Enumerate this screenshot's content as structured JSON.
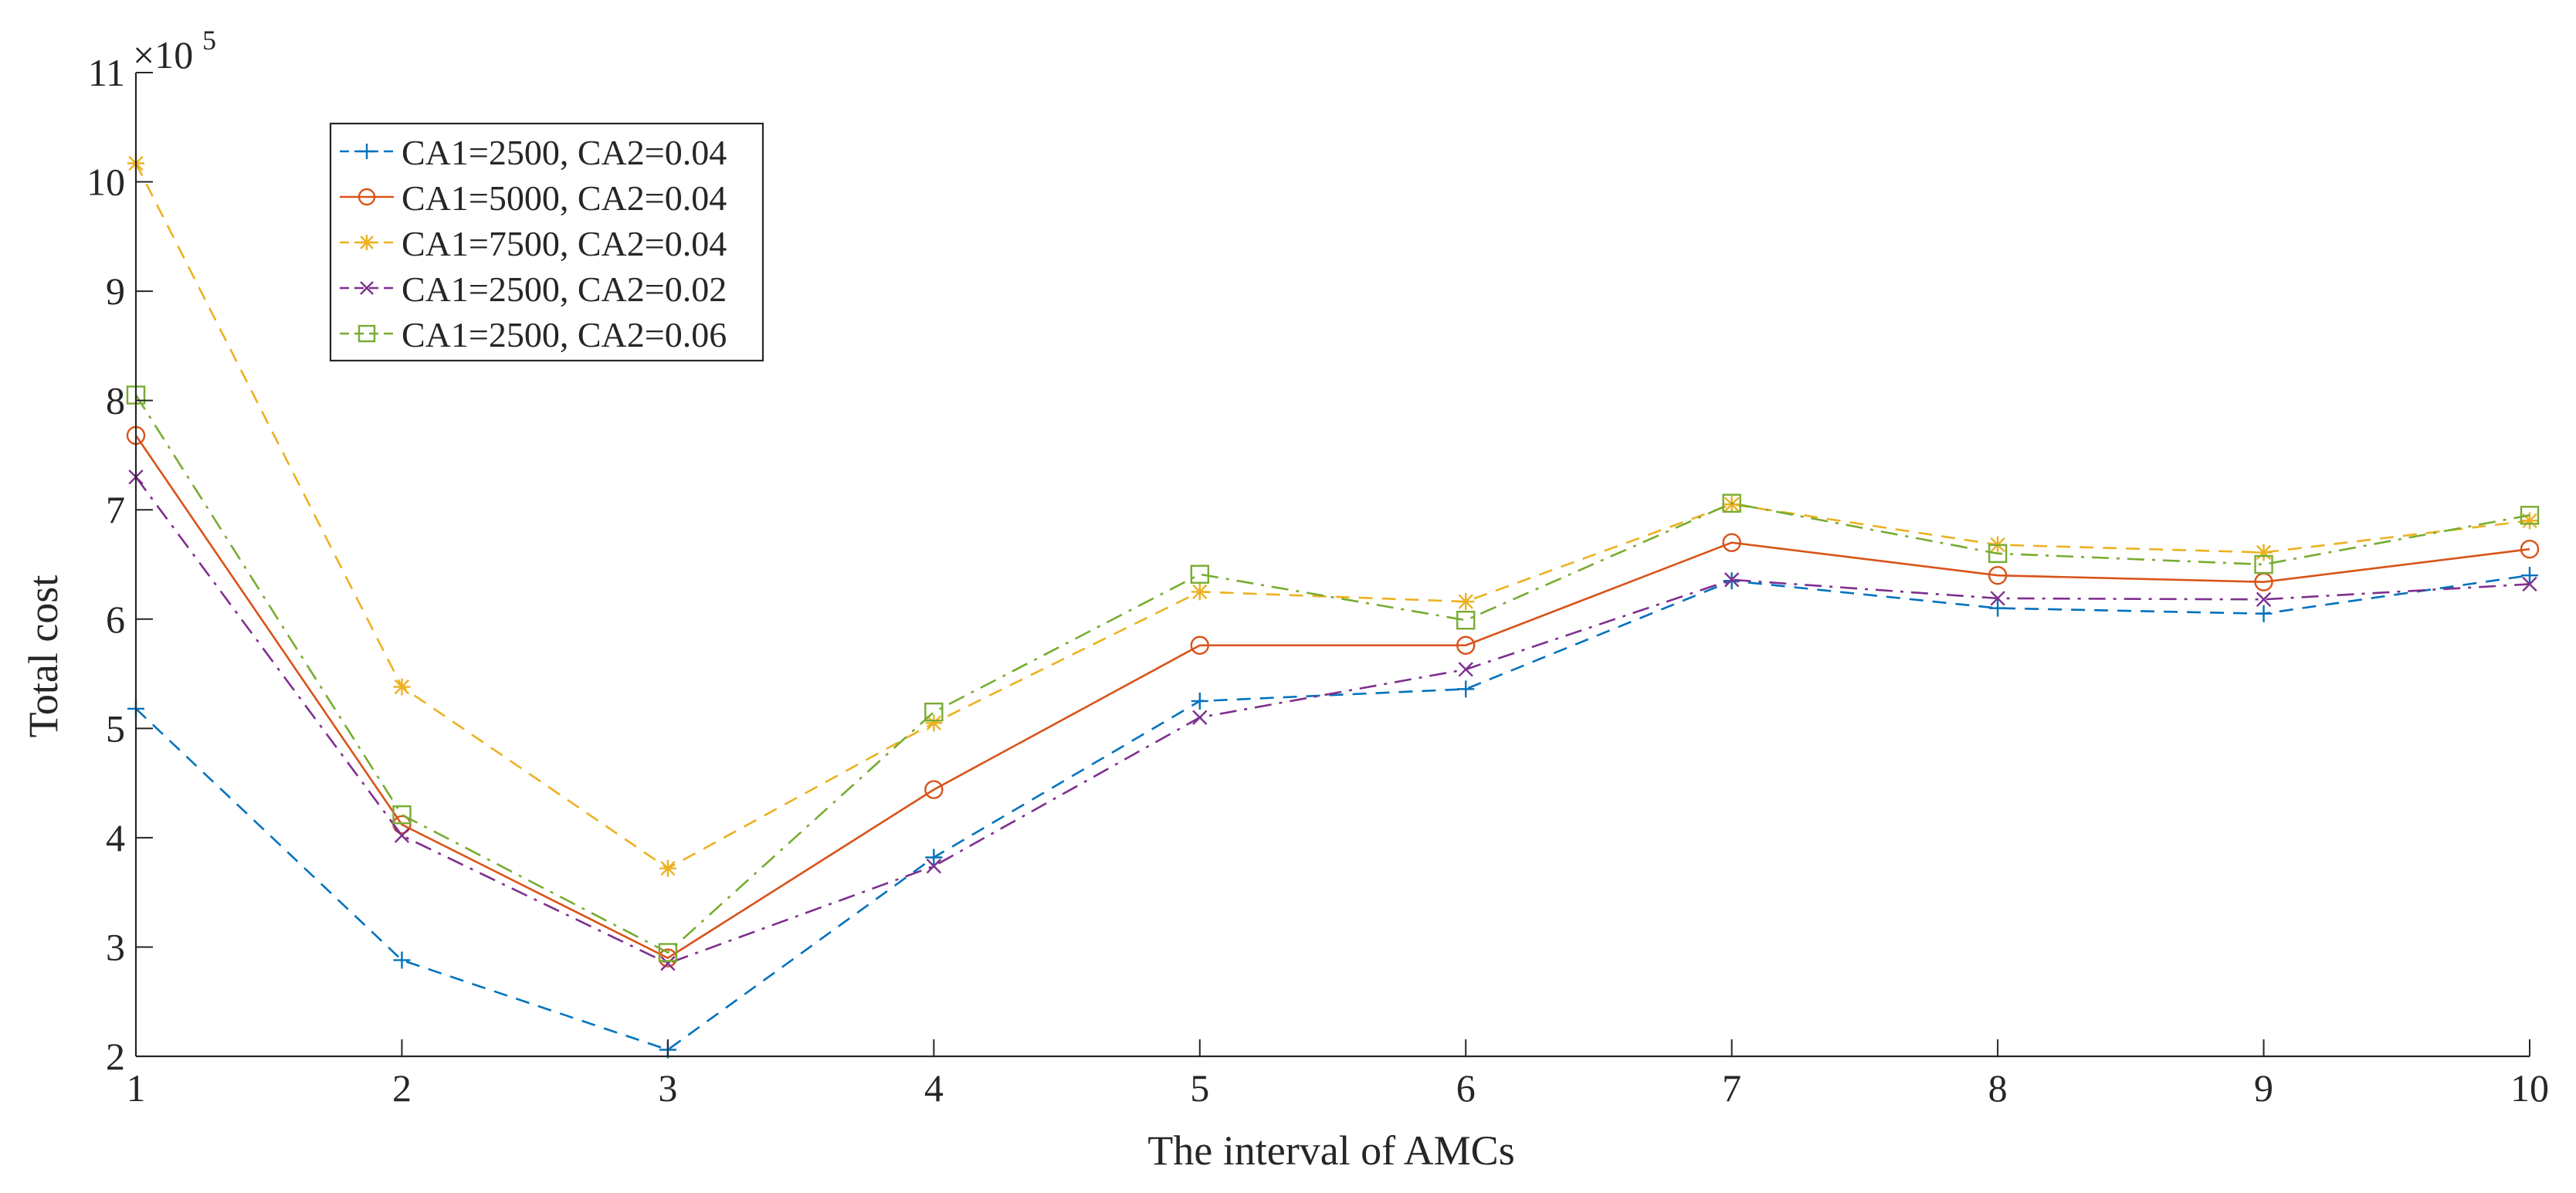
{
  "chart_data": {
    "type": "line",
    "title": "",
    "xlabel": "The interval of AMCs",
    "ylabel": "Total cost",
    "y_exponent_label": "×10",
    "y_exponent_power": "5",
    "xlim": [
      1,
      10
    ],
    "ylim": [
      2,
      11
    ],
    "x": [
      1,
      2,
      3,
      4,
      5,
      6,
      7,
      8,
      9,
      10
    ],
    "x_tick_labels": [
      "1",
      "2",
      "3",
      "4",
      "5",
      "6",
      "7",
      "8",
      "9",
      "10"
    ],
    "y_tick_labels": [
      "2",
      "3",
      "4",
      "5",
      "6",
      "7",
      "8",
      "9",
      "10",
      "11"
    ],
    "legend_position": "top-left",
    "series": [
      {
        "name": "CA1=2500, CA2=0.04",
        "color": "#0072BD",
        "dash": "dashed",
        "marker": "plus",
        "values": [
          5.18,
          2.88,
          2.06,
          3.82,
          5.25,
          5.36,
          6.35,
          6.1,
          6.05,
          6.4
        ]
      },
      {
        "name": "CA1=5000, CA2=0.04",
        "color": "#D95319",
        "dash": "solid",
        "marker": "circle",
        "values": [
          7.68,
          4.12,
          2.9,
          4.44,
          5.76,
          5.76,
          6.7,
          6.4,
          6.34,
          6.64
        ]
      },
      {
        "name": "CA1=7500, CA2=0.04",
        "color": "#EDB120",
        "dash": "dashed",
        "marker": "star",
        "values": [
          10.17,
          5.38,
          3.72,
          5.05,
          6.25,
          6.16,
          7.05,
          6.68,
          6.61,
          6.9
        ]
      },
      {
        "name": "CA1=2500, CA2=0.02",
        "color": "#7E2F8E",
        "dash": "dashdot",
        "marker": "x",
        "values": [
          7.3,
          4.02,
          2.85,
          3.74,
          5.1,
          5.54,
          6.36,
          6.19,
          6.18,
          6.32
        ]
      },
      {
        "name": "CA1=2500, CA2=0.06",
        "color": "#77AC30",
        "dash": "dashdot",
        "marker": "square",
        "values": [
          8.05,
          4.21,
          2.95,
          5.15,
          6.41,
          5.99,
          7.06,
          6.6,
          6.5,
          6.95
        ]
      }
    ]
  }
}
